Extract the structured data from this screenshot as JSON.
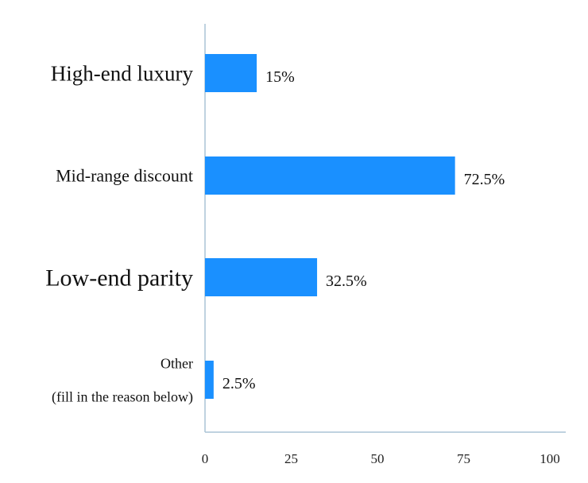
{
  "chart_data": {
    "type": "bar",
    "orientation": "horizontal",
    "categories": [
      [
        "High-end luxury"
      ],
      [
        "Mid-range discount"
      ],
      [
        "Low-end parity"
      ],
      [
        "Other",
        "(fill in the reason below)"
      ]
    ],
    "values": [
      15,
      72.5,
      32.5,
      2.5
    ],
    "value_labels": [
      "15%",
      "72.5%",
      "32.5%",
      "2.5%"
    ],
    "x_ticks": [
      "0",
      "25",
      "50",
      "75",
      "100"
    ],
    "xlim": [
      0,
      100
    ],
    "bar_color": "#1a90ff",
    "axis_color": "#aac4d6"
  }
}
